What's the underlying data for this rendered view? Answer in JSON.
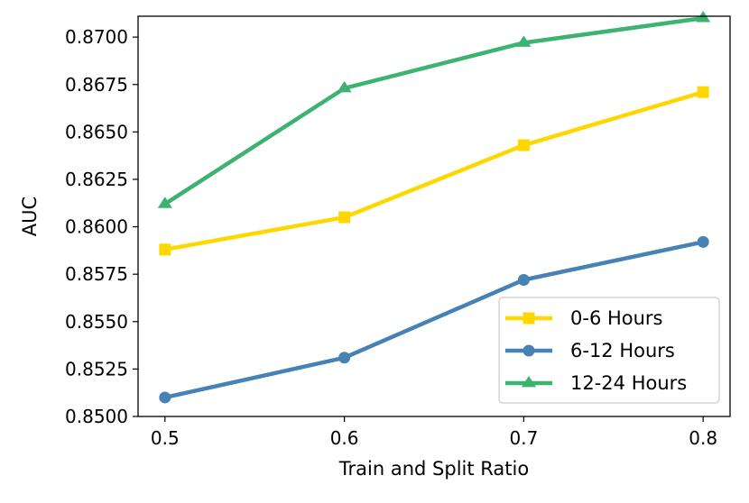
{
  "chart_data": {
    "type": "line",
    "title": "",
    "xlabel": "Train and Split Ratio",
    "ylabel": "AUC",
    "x": [
      0.5,
      0.6,
      0.7,
      0.8
    ],
    "x_tick_labels": [
      "0.5",
      "0.6",
      "0.7",
      "0.8"
    ],
    "xlim": [
      0.485,
      0.815
    ],
    "ylim": [
      0.85,
      0.8711
    ],
    "y_ticks": [
      0.85,
      0.8525,
      0.855,
      0.8575,
      0.86,
      0.8625,
      0.865,
      0.8675,
      0.87
    ],
    "y_tick_labels": [
      "0.8500",
      "0.8525",
      "0.8550",
      "0.8575",
      "0.8600",
      "0.8625",
      "0.8650",
      "0.8675",
      "0.8700"
    ],
    "grid": false,
    "legend_position": "lower-right",
    "series": [
      {
        "name": "0-6 Hours",
        "key": "series-0-6-hours",
        "color": "#FFD700",
        "marker": "square",
        "values": [
          0.8588,
          0.8605,
          0.8643,
          0.8671
        ]
      },
      {
        "name": "6-12 Hours",
        "key": "series-6-12-hours",
        "color": "#4682B4",
        "marker": "circle",
        "values": [
          0.851,
          0.8531,
          0.8572,
          0.8592
        ]
      },
      {
        "name": "12-24 Hours",
        "key": "series-12-24-hours",
        "color": "#3CB371",
        "marker": "triangle",
        "values": [
          0.8612,
          0.8673,
          0.8697,
          0.871
        ]
      }
    ]
  }
}
